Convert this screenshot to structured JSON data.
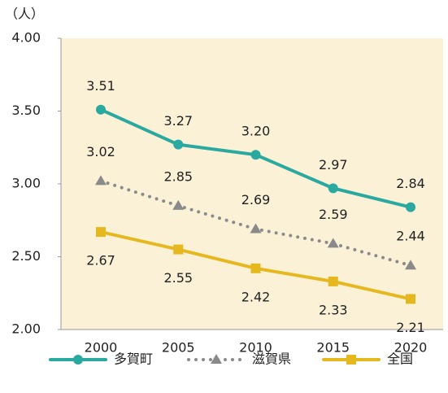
{
  "chart_data": {
    "type": "line",
    "y_label": "（人）",
    "categories": [
      "2000",
      "2005",
      "2010",
      "2015",
      "2020"
    ],
    "ylim": [
      2,
      4
    ],
    "yticks": [
      {
        "value": 2,
        "label": "2.00"
      },
      {
        "value": 2.5,
        "label": "2.50"
      },
      {
        "value": 3,
        "label": "3.00"
      },
      {
        "value": 3.5,
        "label": "3.50"
      },
      {
        "value": 4,
        "label": "4.00"
      }
    ],
    "grid": false,
    "legend": "bottom",
    "series": [
      {
        "name": "多賀町",
        "color": "#2aa9a0",
        "marker": "circle",
        "dash": false,
        "label_side": "above",
        "values": [
          3.51,
          3.27,
          3.2,
          2.97,
          2.84
        ],
        "value_labels": [
          "3.51",
          "3.27",
          "3.20",
          "2.97",
          "2.84"
        ]
      },
      {
        "name": "滋賀県",
        "color": "#8a8a8a",
        "marker": "triangle",
        "dash": true,
        "label_side": "above",
        "values": [
          3.02,
          2.85,
          2.69,
          2.59,
          2.44
        ],
        "value_labels": [
          "3.02",
          "2.85",
          "2.69",
          "2.59",
          "2.44"
        ]
      },
      {
        "name": "全国",
        "color": "#e6b820",
        "marker": "square",
        "dash": false,
        "label_side": "below",
        "values": [
          2.67,
          2.55,
          2.42,
          2.33,
          2.21
        ],
        "value_labels": [
          "2.67",
          "2.55",
          "2.42",
          "2.33",
          "2.21"
        ]
      }
    ]
  }
}
